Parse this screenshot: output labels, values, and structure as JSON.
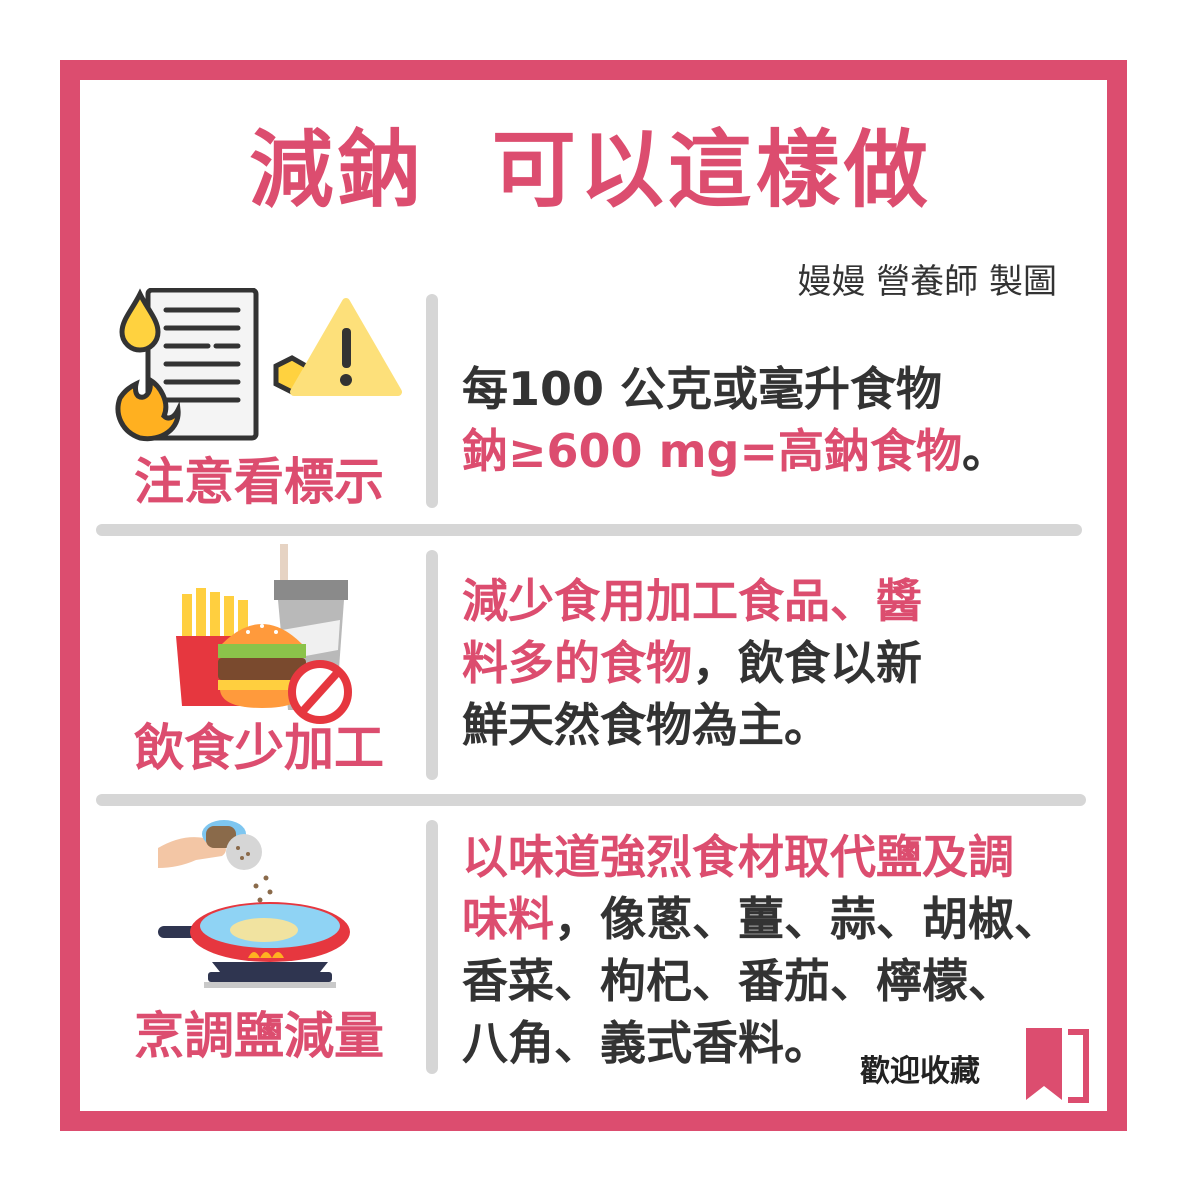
{
  "title": "減鈉  可以這樣做",
  "credit": "嫚嫚 營養師 製圖",
  "sections": [
    {
      "label": "注意看標示",
      "lines": [
        [
          {
            "text": "每100 公克或毫升食物",
            "hl": false
          }
        ],
        [
          {
            "text": "鈉≥600 mg=高鈉食物",
            "hl": true
          },
          {
            "text": "。",
            "hl": false
          }
        ]
      ],
      "icon": "nutrition-label-warning-icon"
    },
    {
      "label": "飲食少加工",
      "lines": [
        [
          {
            "text": "減少食用加工食品、醬",
            "hl": true
          }
        ],
        [
          {
            "text": "料多的食物",
            "hl": true
          },
          {
            "text": "，飲食以新",
            "hl": false
          }
        ],
        [
          {
            "text": "鮮天然食物為主。",
            "hl": false
          }
        ]
      ],
      "icon": "no-fast-food-icon"
    },
    {
      "label": "烹調鹽減量",
      "lines": [
        [
          {
            "text": "以味道強烈食材取代鹽及調",
            "hl": true
          }
        ],
        [
          {
            "text": "味料",
            "hl": true
          },
          {
            "text": "，像蔥、薑、蒜、胡椒、",
            "hl": false
          }
        ],
        [
          {
            "text": "香菜、枸杞、番茄、檸檬、",
            "hl": false
          }
        ],
        [
          {
            "text": "八角、義式香料。",
            "hl": false
          }
        ]
      ],
      "icon": "salt-shaker-pan-icon"
    }
  ],
  "footer": {
    "favorite": "歡迎收藏"
  },
  "colors": {
    "accent": "#dc4d6f",
    "text": "#333333",
    "divider": "#d6d6d6"
  }
}
